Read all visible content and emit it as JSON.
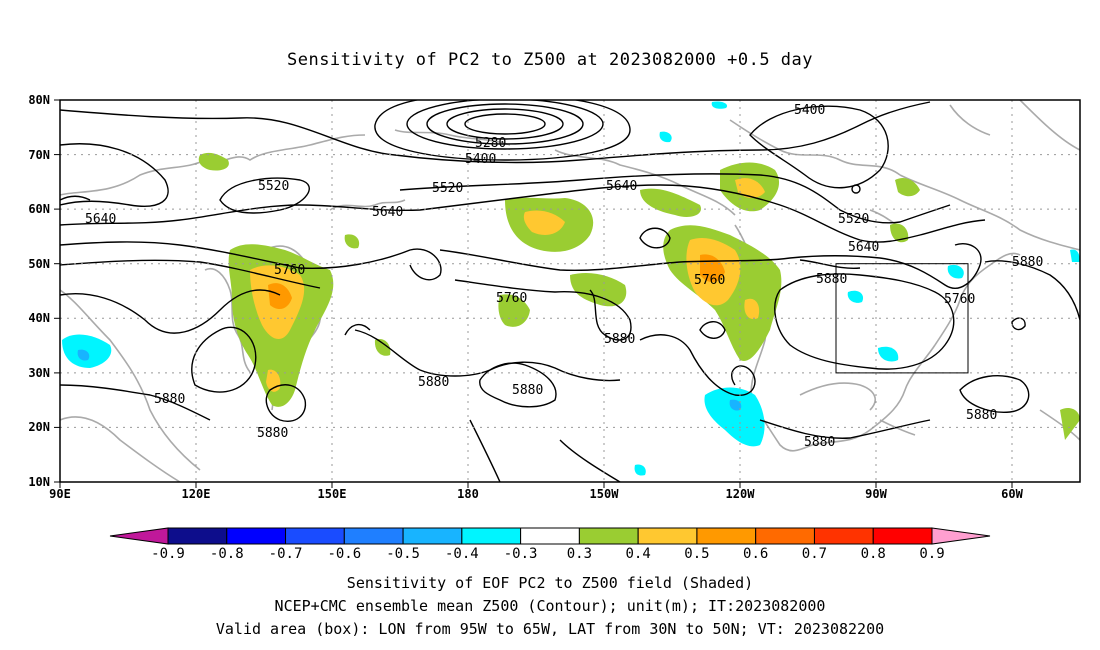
{
  "title": "Sensitivity of PC2 to Z500 at 2023082000 +0.5 day",
  "map": {
    "lat_labels": [
      "80N",
      "70N",
      "60N",
      "50N",
      "40N",
      "30N",
      "20N",
      "10N"
    ],
    "lon_labels": [
      "90E",
      "120E",
      "150E",
      "180",
      "150W",
      "120W",
      "90W",
      "60W"
    ],
    "contour_labels": [
      "5280",
      "5400",
      "5400",
      "5520",
      "5520",
      "5520",
      "5640",
      "5640",
      "5640",
      "5640",
      "5760",
      "5760",
      "5760",
      "5760",
      "5880",
      "5880",
      "5880",
      "5880",
      "5880",
      "5880",
      "5880",
      "5880"
    ],
    "valid_box": {
      "lon_from": "95W",
      "lon_to": "65W",
      "lat_from": "30N",
      "lat_to": "50N"
    }
  },
  "colorbar": {
    "labels": [
      "-0.9",
      "-0.8",
      "-0.7",
      "-0.6",
      "-0.5",
      "-0.4",
      "-0.3",
      "0.3",
      "0.4",
      "0.5",
      "0.6",
      "0.7",
      "0.8",
      "0.9"
    ],
    "colors": [
      "#0d0d8c",
      "#0000ff",
      "#1a4cff",
      "#1f7fff",
      "#18b4ff",
      "#00f5ff",
      "#ffffff",
      "#9acd32",
      "#ffc830",
      "#ff9900",
      "#ff6a00",
      "#ff3300",
      "#ff0000"
    ],
    "low_end_color": "#c0189a",
    "high_end_color": "#ff9fd0"
  },
  "footer": {
    "line1": "Sensitivity of EOF PC2 to Z500 field (Shaded)",
    "line2": "NCEP+CMC ensemble mean Z500 (Contour); unit(m); IT:2023082000",
    "line3": "Valid area (box): LON from 95W to 65W, LAT from 30N to 50N; VT: 2023082200"
  }
}
